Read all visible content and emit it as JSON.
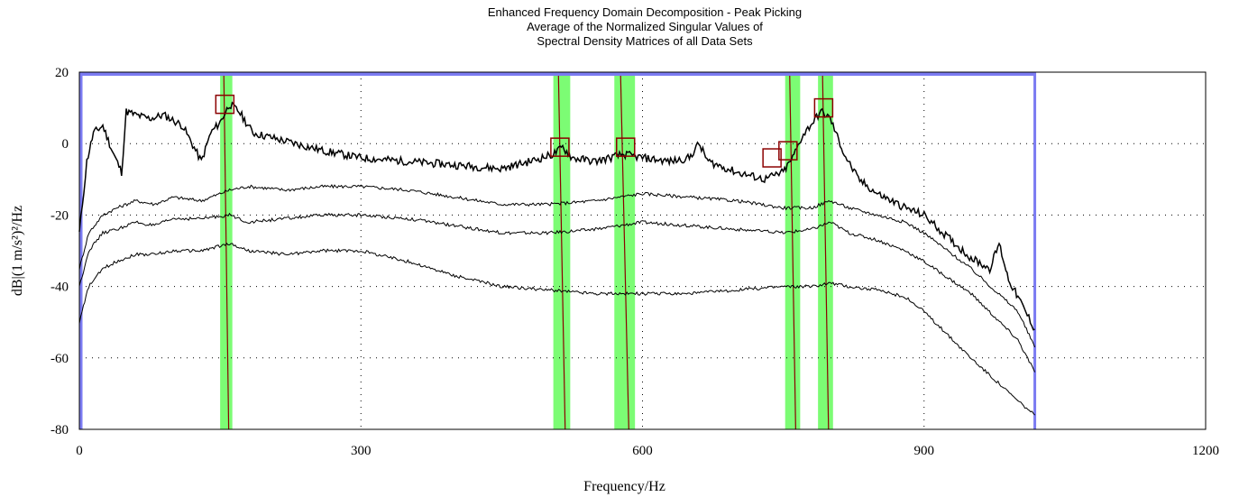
{
  "chart_data": {
    "type": "line",
    "title_lines": [
      "Enhanced Frequency Domain Decomposition - Peak Picking",
      "Average of the Normalized Singular Values of",
      "Spectral Density Matrices of all Data Sets"
    ],
    "xlabel": "Frequency/Hz",
    "ylabel": "dB|(1 m/s²)²/Hz",
    "xlim": [
      0,
      1200
    ],
    "ylim": [
      -80,
      20
    ],
    "x_ticks": [
      0,
      300,
      600,
      900,
      1200
    ],
    "y_ticks": [
      20,
      0,
      -20,
      -40,
      -60,
      -80
    ],
    "grid": "dotted",
    "series": [
      {
        "color": "#000000",
        "x": [
          0,
          8,
          15,
          25,
          35,
          45,
          50,
          60,
          75,
          90,
          110,
          130,
          140,
          150,
          160,
          170,
          185,
          200,
          230,
          260,
          300,
          350,
          400,
          450,
          480,
          505,
          515,
          525,
          550,
          580,
          600,
          630,
          650,
          660,
          670,
          700,
          730,
          750,
          760,
          770,
          790,
          800,
          815,
          830,
          850,
          880,
          900,
          920,
          950,
          970,
          980,
          990,
          1000,
          1010,
          1018
        ],
        "y": [
          -25,
          -5,
          3,
          5,
          -2,
          -8,
          9,
          8,
          7,
          8,
          5,
          -5,
          3,
          6,
          11,
          9,
          3,
          2,
          0,
          -2,
          -4,
          -5,
          -6,
          -7,
          -5,
          -3,
          -1,
          -4,
          -5,
          -3,
          -4,
          -5,
          -4,
          0,
          -5,
          -8,
          -10,
          -8,
          -4,
          2,
          9,
          7,
          -3,
          -10,
          -14,
          -18,
          -20,
          -25,
          -32,
          -35,
          -28,
          -38,
          -43,
          -48,
          -52
        ]
      },
      {
        "color": "#000000",
        "x": [
          0,
          10,
          25,
          40,
          60,
          80,
          100,
          130,
          160,
          180,
          220,
          260,
          300,
          350,
          400,
          450,
          500,
          550,
          600,
          650,
          700,
          750,
          780,
          800,
          820,
          850,
          880,
          900,
          950,
          1000,
          1018
        ],
        "y": [
          -35,
          -25,
          -20,
          -18,
          -16,
          -17,
          -15,
          -16,
          -13,
          -12,
          -13,
          -12,
          -12,
          -13,
          -15,
          -17,
          -17,
          -16,
          -14,
          -15,
          -16,
          -18,
          -18,
          -16,
          -18,
          -20,
          -22,
          -25,
          -35,
          -47,
          -57
        ]
      },
      {
        "color": "#000000",
        "x": [
          0,
          10,
          25,
          40,
          60,
          80,
          100,
          130,
          160,
          180,
          220,
          260,
          300,
          350,
          400,
          450,
          500,
          550,
          600,
          650,
          700,
          750,
          780,
          800,
          820,
          850,
          880,
          900,
          950,
          1000,
          1018
        ],
        "y": [
          -40,
          -30,
          -25,
          -24,
          -22,
          -23,
          -21,
          -21,
          -20,
          -22,
          -21,
          -20,
          -20,
          -21,
          -23,
          -25,
          -25,
          -24,
          -22,
          -23,
          -24,
          -25,
          -24,
          -22,
          -25,
          -27,
          -30,
          -33,
          -42,
          -55,
          -64
        ]
      },
      {
        "color": "#000000",
        "x": [
          0,
          10,
          25,
          40,
          60,
          80,
          100,
          130,
          160,
          180,
          220,
          260,
          300,
          350,
          400,
          450,
          500,
          550,
          600,
          650,
          700,
          750,
          780,
          800,
          820,
          850,
          880,
          900,
          950,
          1000,
          1018
        ],
        "y": [
          -50,
          -40,
          -35,
          -33,
          -31,
          -31,
          -30,
          -30,
          -28,
          -30,
          -31,
          -30,
          -30,
          -33,
          -37,
          -40,
          -41,
          -42,
          -42,
          -42,
          -41,
          -40,
          -40,
          -39,
          -40,
          -41,
          -43,
          -47,
          -60,
          -72,
          -76
        ]
      }
    ],
    "blue_band": {
      "color": "#7b7bf2",
      "x_start": 0,
      "x_end": 1018
    },
    "peak_bands": [
      {
        "x_start": 150,
        "x_end": 163,
        "color": "#7cfc74"
      },
      {
        "x_start": 505,
        "x_end": 523,
        "color": "#7cfc74"
      },
      {
        "x_start": 570,
        "x_end": 592,
        "color": "#7cfc74"
      },
      {
        "x_start": 752,
        "x_end": 768,
        "color": "#7cfc74"
      },
      {
        "x_start": 787,
        "x_end": 803,
        "color": "#7cfc74"
      }
    ],
    "peak_markers": [
      {
        "x": 155,
        "y": 11
      },
      {
        "x": 512,
        "y": -1
      },
      {
        "x": 582,
        "y": -1
      },
      {
        "x": 738,
        "y": -4
      },
      {
        "x": 755,
        "y": -2
      },
      {
        "x": 793,
        "y": 10
      }
    ],
    "marker_color": "#8b0000"
  }
}
